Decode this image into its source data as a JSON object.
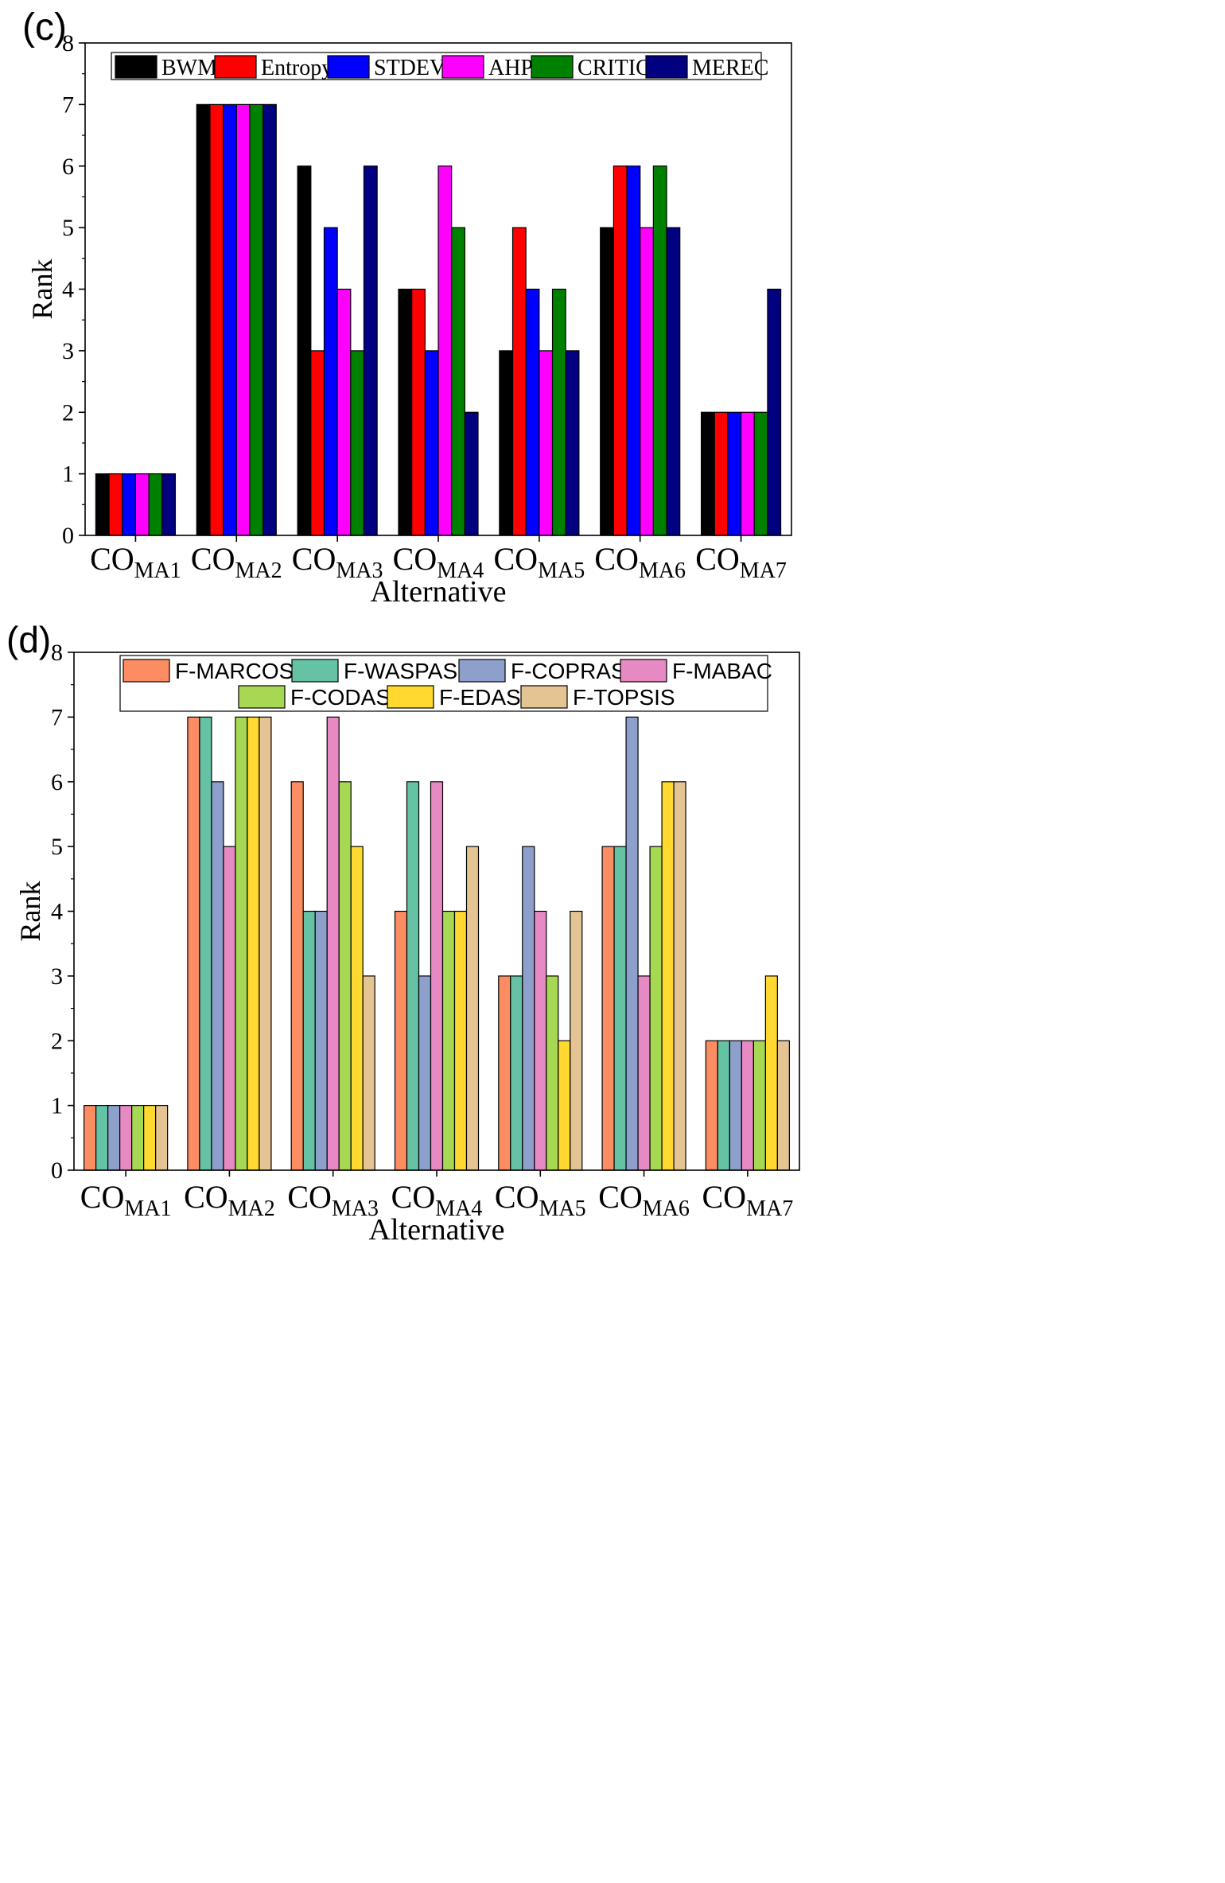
{
  "chart_data": [
    {
      "type": "bar",
      "panel_label": "(c)",
      "x_prefix": "CO",
      "categories": [
        "MA1",
        "MA2",
        "MA3",
        "MA4",
        "MA5",
        "MA6",
        "MA7"
      ],
      "xlabel": "Alternative",
      "ylabel": "Rank",
      "ylim": [
        0,
        8
      ],
      "yticks": [
        "0",
        "1",
        "2",
        "3",
        "4",
        "5",
        "6",
        "7",
        "8"
      ],
      "legend_position": "top",
      "series": [
        {
          "name": "BWM",
          "color": "#000000",
          "values": [
            1,
            7,
            6,
            4,
            3,
            5,
            2
          ]
        },
        {
          "name": "Entropy",
          "color": "#ff0000",
          "values": [
            1,
            7,
            3,
            4,
            5,
            6,
            2
          ]
        },
        {
          "name": "STDEV",
          "color": "#0000ff",
          "values": [
            1,
            7,
            5,
            3,
            4,
            6,
            2
          ]
        },
        {
          "name": "AHP",
          "color": "#ff00ff",
          "values": [
            1,
            7,
            4,
            6,
            3,
            5,
            2
          ]
        },
        {
          "name": "CRITIC",
          "color": "#008000",
          "values": [
            1,
            7,
            3,
            5,
            4,
            6,
            2
          ]
        },
        {
          "name": "MEREC",
          "color": "#000080",
          "values": [
            1,
            7,
            6,
            2,
            3,
            5,
            4
          ]
        }
      ]
    },
    {
      "type": "bar",
      "panel_label": "(d)",
      "x_prefix": "CO",
      "categories": [
        "MA1",
        "MA2",
        "MA3",
        "MA4",
        "MA5",
        "MA6",
        "MA7"
      ],
      "xlabel": "Alternative",
      "ylabel": "Rank",
      "ylim": [
        0,
        8
      ],
      "yticks": [
        "0",
        "1",
        "2",
        "3",
        "4",
        "5",
        "6",
        "7",
        "8"
      ],
      "legend_position": "top",
      "series": [
        {
          "name": "F-MARCOS",
          "color": "#fc8d62",
          "values": [
            1,
            7,
            6,
            4,
            3,
            5,
            2
          ]
        },
        {
          "name": "F-WASPAS",
          "color": "#66c2a5",
          "values": [
            1,
            7,
            4,
            6,
            3,
            5,
            2
          ]
        },
        {
          "name": "F-COPRAS",
          "color": "#8da0cb",
          "values": [
            1,
            6,
            4,
            3,
            5,
            7,
            2
          ]
        },
        {
          "name": "F-MABAC",
          "color": "#e78ac3",
          "values": [
            1,
            5,
            7,
            6,
            4,
            3,
            2
          ]
        },
        {
          "name": "F-CODAS",
          "color": "#a6d854",
          "values": [
            1,
            7,
            6,
            4,
            3,
            5,
            2
          ]
        },
        {
          "name": "F-EDAS",
          "color": "#ffd92f",
          "values": [
            1,
            7,
            5,
            4,
            2,
            6,
            3
          ]
        },
        {
          "name": "F-TOPSIS",
          "color": "#e5c494",
          "values": [
            1,
            7,
            3,
            5,
            4,
            6,
            2
          ]
        }
      ]
    }
  ]
}
